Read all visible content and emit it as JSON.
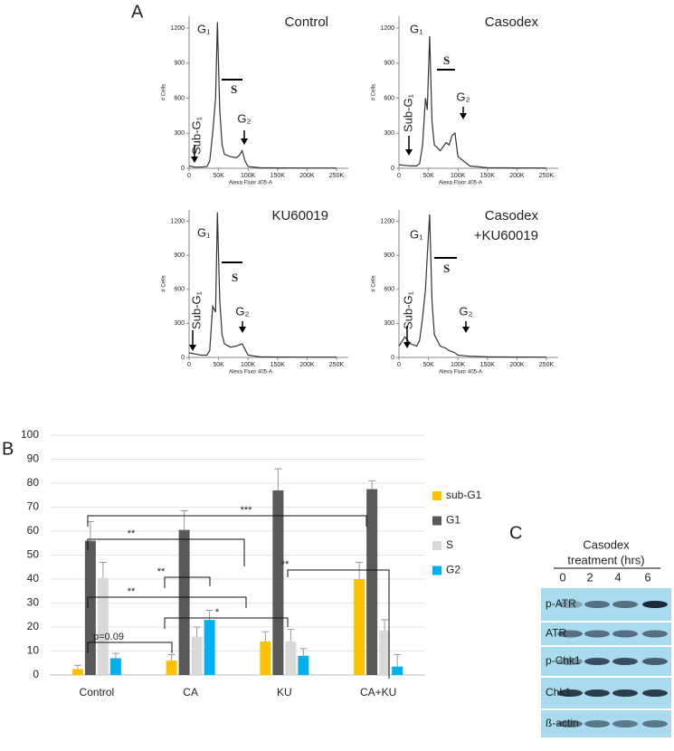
{
  "panel_labels": [
    "A",
    "B",
    "C"
  ],
  "chart_data": [
    {
      "type": "line",
      "title": "Control",
      "xlabel": "Alexa Fluor 405-A",
      "ylabel": "# Cells",
      "color": "#333333",
      "annotations": [
        "G₁",
        "S",
        "Sub-G₁",
        "G₂"
      ],
      "x": [
        0,
        10000,
        20000,
        30000,
        35000,
        40000,
        45000,
        48000,
        52000,
        56000,
        60000,
        70000,
        80000,
        85000,
        90000,
        95000,
        100000,
        120000,
        150000,
        200000,
        250000
      ],
      "values": [
        20,
        10,
        10,
        15,
        60,
        300,
        600,
        1250,
        500,
        200,
        120,
        100,
        90,
        110,
        150,
        60,
        15,
        5,
        3,
        2,
        2
      ],
      "xlim": [
        0,
        270000
      ],
      "ylim": [
        0,
        1300
      ],
      "xticks": [
        0,
        {
          "value": 50000,
          "label": "50K"
        },
        {
          "value": 100000,
          "label": "100K"
        },
        {
          "value": 150000,
          "label": "150K"
        },
        {
          "value": 200000,
          "label": "200K"
        },
        {
          "value": 250000,
          "label": "250K"
        }
      ],
      "yticks": [
        0,
        300,
        600,
        900,
        1200
      ]
    },
    {
      "type": "line",
      "title": "Casodex",
      "xlabel": "Alexa Fluor 405-A",
      "ylabel": "# Cells",
      "color": "#333333",
      "annotations": [
        "G₁",
        "S",
        "Sub-G₁",
        "G₂"
      ],
      "x": [
        0,
        10000,
        20000,
        30000,
        35000,
        40000,
        45000,
        48000,
        52000,
        56000,
        60000,
        70000,
        80000,
        85000,
        90000,
        95000,
        100000,
        120000,
        150000,
        200000,
        250000
      ],
      "values": [
        30,
        25,
        20,
        20,
        40,
        200,
        600,
        500,
        1130,
        400,
        200,
        150,
        220,
        200,
        280,
        300,
        100,
        20,
        5,
        3,
        2
      ],
      "xlim": [
        0,
        270000
      ],
      "ylim": [
        0,
        1300
      ],
      "xticks": [
        0,
        {
          "value": 50000,
          "label": "50K"
        },
        {
          "value": 100000,
          "label": "100K"
        },
        {
          "value": 150000,
          "label": "150K"
        },
        {
          "value": 200000,
          "label": "200K"
        },
        {
          "value": 250000,
          "label": "250K"
        }
      ],
      "yticks": [
        0,
        300,
        600,
        900,
        1200
      ]
    },
    {
      "type": "line",
      "title": "KU60019",
      "xlabel": "Alexa Fluor 405-A",
      "ylabel": "# Cells",
      "color": "#333333",
      "annotations": [
        "G₁",
        "S",
        "Sub-G₁",
        "G₂"
      ],
      "x": [
        0,
        10000,
        20000,
        30000,
        35000,
        40000,
        45000,
        48000,
        52000,
        56000,
        60000,
        70000,
        80000,
        85000,
        90000,
        95000,
        100000,
        120000,
        150000,
        200000,
        250000
      ],
      "values": [
        40,
        30,
        20,
        20,
        60,
        450,
        400,
        1280,
        500,
        200,
        120,
        90,
        100,
        110,
        120,
        70,
        20,
        5,
        3,
        2,
        2
      ],
      "xlim": [
        0,
        270000
      ],
      "ylim": [
        0,
        1300
      ],
      "xticks": [
        0,
        {
          "value": 50000,
          "label": "50K"
        },
        {
          "value": 100000,
          "label": "100K"
        },
        {
          "value": 150000,
          "label": "150K"
        },
        {
          "value": 200000,
          "label": "200K"
        },
        {
          "value": 250000,
          "label": "250K"
        }
      ],
      "yticks": [
        0,
        300,
        600,
        900,
        1200
      ]
    },
    {
      "type": "line",
      "title": "Casodex",
      "subtitle": "+KU60019",
      "xlabel": "Alexa Fluor 405-A",
      "ylabel": "# Cells",
      "color": "#333333",
      "annotations": [
        "G₁",
        "S",
        "Sub-G₁",
        "G₂"
      ],
      "x": [
        0,
        10000,
        20000,
        30000,
        35000,
        40000,
        45000,
        48000,
        52000,
        56000,
        60000,
        70000,
        80000,
        85000,
        90000,
        95000,
        100000,
        120000,
        150000,
        200000,
        250000
      ],
      "values": [
        100,
        180,
        120,
        100,
        150,
        350,
        600,
        900,
        1260,
        500,
        200,
        100,
        80,
        60,
        50,
        40,
        20,
        10,
        5,
        3,
        2
      ],
      "xlim": [
        0,
        270000
      ],
      "ylim": [
        0,
        1300
      ],
      "xticks": [
        0,
        {
          "value": 50000,
          "label": "50K"
        },
        {
          "value": 100000,
          "label": "100K"
        },
        {
          "value": 150000,
          "label": "150K"
        },
        {
          "value": 200000,
          "label": "200K"
        },
        {
          "value": 250000,
          "label": "250K"
        }
      ],
      "yticks": [
        0,
        300,
        600,
        900,
        1200
      ]
    },
    {
      "type": "bar",
      "categories": [
        "Control",
        "CA",
        "KU",
        "CA+KU"
      ],
      "series": [
        {
          "name": "sub-G1",
          "color": "#ffc000",
          "values": [
            2.5,
            6,
            14,
            40
          ],
          "errors": [
            1.5,
            2.5,
            4,
            7
          ]
        },
        {
          "name": "G1",
          "color": "#595959",
          "values": [
            56,
            60.5,
            77,
            77.5
          ],
          "errors": [
            8,
            8,
            9,
            3.5
          ]
        },
        {
          "name": "S",
          "color": "#d9d9d9",
          "values": [
            40.5,
            16,
            14,
            18.5
          ],
          "errors": [
            6.5,
            4,
            5,
            4.5
          ]
        },
        {
          "name": "G2",
          "color": "#00b0f0",
          "values": [
            7,
            23,
            8,
            3.5
          ],
          "errors": [
            2,
            4,
            3,
            5
          ]
        }
      ],
      "ylim": [
        0,
        100
      ],
      "yticks": [
        0,
        10,
        20,
        30,
        40,
        50,
        60,
        70,
        80,
        90,
        100
      ],
      "grid": true,
      "legend": "right",
      "annotations": [
        "***",
        "**",
        "**",
        "**",
        "*",
        "p=0.09",
        "**"
      ]
    }
  ],
  "blot": {
    "header": [
      "Casodex",
      "treatment (hrs)"
    ],
    "lanes": [
      "0",
      "2",
      "4",
      "6"
    ],
    "rows": [
      "p-ATR",
      "ATR",
      "p-Chk1",
      "Chk1",
      "ß-actin"
    ]
  }
}
